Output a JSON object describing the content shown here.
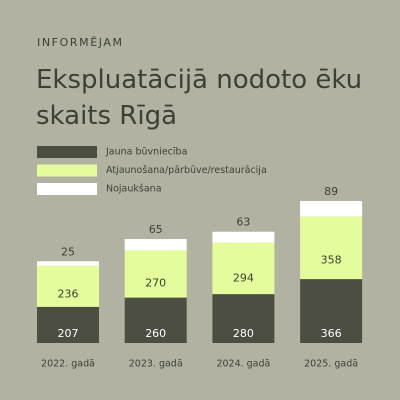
{
  "kicker": "INFORMĒJAM",
  "chart_data": {
    "type": "stacked-bar",
    "title": "Ekspluatācijā nodoto ēku skaits Rīgā",
    "categories": [
      "2022. gadā",
      "2023. gadā",
      "2024. gadā",
      "2025. gadā"
    ],
    "series": [
      {
        "name": "Jauna būvniecība",
        "color": "#4b4e40",
        "label_color": "#ffffff",
        "values": [
          207,
          260,
          280,
          366
        ]
      },
      {
        "name": "Atjaunošana/pārbūve/restaurācija",
        "color": "#e4fc9c",
        "label_color": "#3d4033",
        "values": [
          236,
          270,
          294,
          358
        ]
      },
      {
        "name": "Nojaukšana",
        "color": "#ffffff",
        "label_color": "#3d4033",
        "values": [
          25,
          65,
          63,
          89
        ]
      }
    ]
  }
}
